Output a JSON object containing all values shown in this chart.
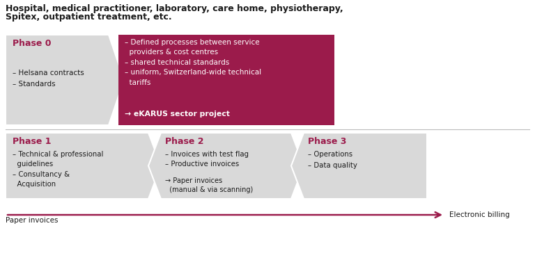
{
  "title_line1": "Hospital, medical practitioner, laboratory, care home, physiotherapy,",
  "title_line2": "Spitex, outpatient treatment, etc.",
  "phase0_title": "Phase 0",
  "phase0_bullets": "– Helsana contracts\n– Standards",
  "phase0_color": "#d9d9d9",
  "phase0_title_color": "#9b1b4b",
  "box_color": "#9b1b4b",
  "box_text": "– Defined processes between service\n  providers & cost centres\n– shared technical standards\n– uniform, Switzerland-wide technical\n  tariffs",
  "box_ekarus": "→ eKARUS sector project",
  "phase1_title": "Phase 1",
  "phase1_text": "– Technical & professional\n  guidelines\n– Consultancy &\n  Acquisition",
  "phase2_title": "Phase 2",
  "phase2_text_top": "– Invoices with test flag\n– Productive invoices",
  "phase2_text_bot": "→ Paper invoices\n  (manual & via scanning)",
  "phase3_title": "Phase 3",
  "phase3_text": "– Operations\n– Data quality",
  "bottom_phases_color": "#d9d9d9",
  "bottom_phases_title_color": "#9b1b4b",
  "arrow_color": "#9b1b4b",
  "arrow_label_left": "Paper invoices",
  "arrow_label_right": "Electronic billing",
  "bg_color": "#ffffff",
  "text_color": "#1a1a1a"
}
